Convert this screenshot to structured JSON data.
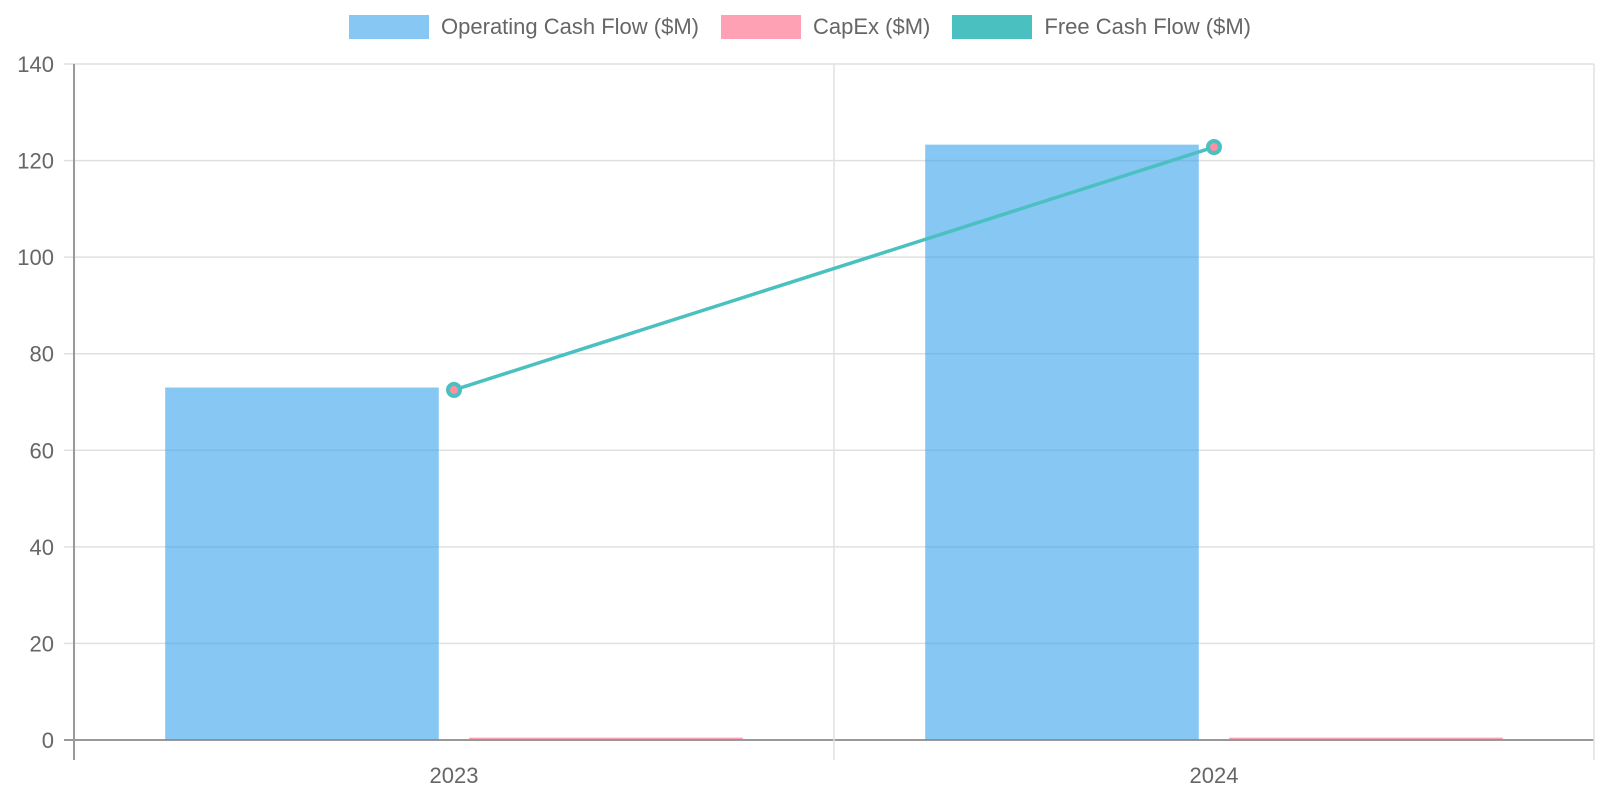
{
  "chart_data": {
    "type": "bar",
    "categories": [
      "2023",
      "2024"
    ],
    "series": [
      {
        "name": "Operating Cash Flow ($M)",
        "type": "bar",
        "values": [
          73,
          123.3
        ],
        "color": "#36A2EB"
      },
      {
        "name": "CapEx ($M)",
        "type": "bar",
        "values": [
          0.5,
          0.5
        ],
        "color": "#FF6384"
      },
      {
        "name": "Free Cash Flow ($M)",
        "type": "line",
        "values": [
          72.5,
          122.8
        ],
        "color": "#4BC0C0"
      }
    ],
    "ylim": [
      0,
      140
    ],
    "yticks": [
      "0",
      "20",
      "40",
      "60",
      "80",
      "100",
      "120",
      "140"
    ],
    "title": "",
    "xlabel": "",
    "ylabel": "",
    "legend_position": "top",
    "grid": true
  }
}
